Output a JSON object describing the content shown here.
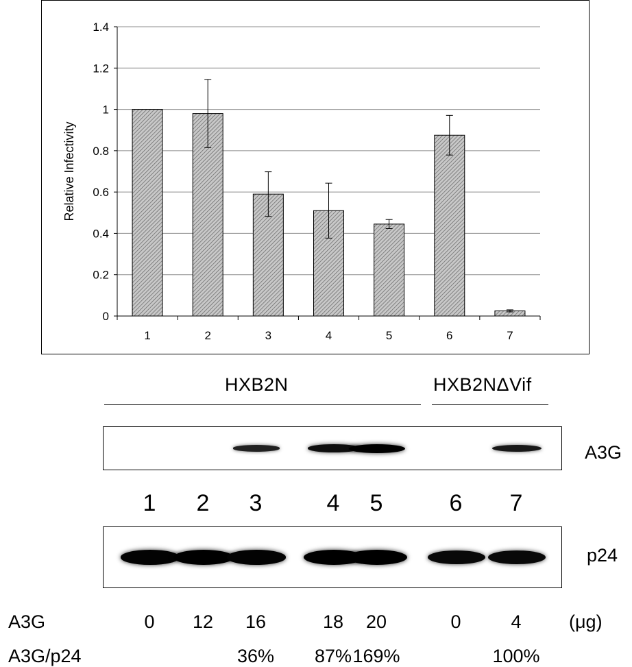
{
  "chart_data": {
    "type": "bar",
    "categories": [
      "1",
      "2",
      "3",
      "4",
      "5",
      "6",
      "7"
    ],
    "values": [
      1.0,
      0.98,
      0.59,
      0.51,
      0.445,
      0.875,
      0.025
    ],
    "errors": [
      0,
      0.165,
      0.108,
      0.133,
      0.022,
      0.096,
      0.005
    ],
    "ylabel": "Relative Infectivity",
    "xlabel": "",
    "ylim": [
      0,
      1.4
    ],
    "yticks": [
      "0",
      "0.2",
      "0.4",
      "0.6",
      "0.8",
      "1",
      "1.2",
      "1.4"
    ],
    "grid": true,
    "bar_fill": "hatched gray"
  },
  "groups": {
    "hxb2n": "HXB2N",
    "hxb2n_dvif": "HXB2NΔVif"
  },
  "blots": {
    "a3g_label": "A3G",
    "p24_label": "p24",
    "a3g_band_intensity": [
      0,
      0,
      0.45,
      0.75,
      1.0,
      0,
      0.6
    ],
    "p24_band_intensity": [
      0.95,
      1.0,
      0.95,
      1.0,
      1.0,
      0.85,
      0.85
    ]
  },
  "lanes": [
    "1",
    "2",
    "3",
    "4",
    "5",
    "6",
    "7"
  ],
  "a3g_row": {
    "label": "A3G",
    "values": [
      "0",
      "12",
      "16",
      "18",
      "20",
      "0",
      "4"
    ],
    "unit": "(μg)"
  },
  "ratio_row": {
    "label": "A3G/p24",
    "values": [
      "",
      "",
      "36%",
      "87%",
      "169%",
      "",
      "100%"
    ]
  }
}
